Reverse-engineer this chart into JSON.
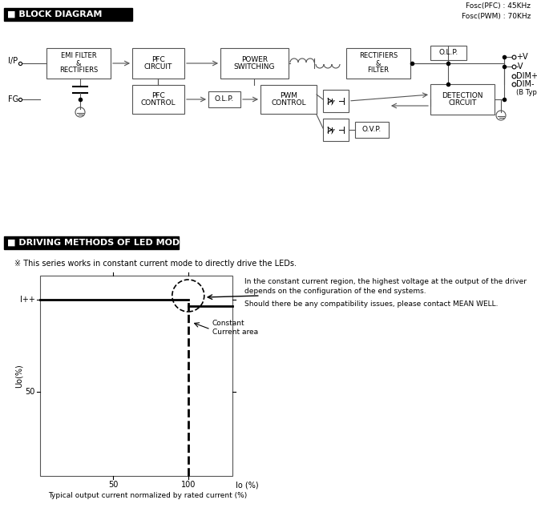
{
  "bg_color": "#ffffff",
  "title1": "■ BLOCK DIAGRAM",
  "fosc_text": "Fosc(PFC) : 45KHz\nFosc(PWM) : 70KHz",
  "title2": "■ DRIVING METHODS OF LED MODULE",
  "subtitle2": "※ This series works in constant current mode to directly drive the LEDs.",
  "graph_note1": "In the constant current region, the highest voltage at the output of the driver",
  "graph_note2": "depends on the configuration of the end systems.",
  "graph_note3": "Should there be any compatibility issues, please contact MEAN WELL.",
  "graph_xlabel": "Io (%)",
  "graph_ylabel": "Uo(%)",
  "graph_caption": "Typical output current normalized by rated current (%)",
  "const_label": "Constant\nCurrent area",
  "ytick_label": "I++",
  "ip_label": "I/P",
  "fg_label": "FG",
  "emi_lines": [
    "EMI FILTER",
    "&",
    "RECTIFIERS"
  ],
  "pfc_circ_lines": [
    "PFC",
    "CIRCUIT"
  ],
  "ps_lines": [
    "POWER",
    "SWITCHING"
  ],
  "rect_lines": [
    "RECTIFIERS",
    "&",
    "FILTER"
  ],
  "olp_top_lines": [
    "O.L.P."
  ],
  "det_lines": [
    "DETECTION",
    "CIRCUIT"
  ],
  "pfc_ctrl_lines": [
    "PFC",
    "CONTROL"
  ],
  "olp2_lines": [
    "O.L.P."
  ],
  "pwm_lines": [
    "PWM",
    "CONTROL"
  ],
  "ovp_lines": [
    "O.V.P."
  ],
  "pv": "+V",
  "mv": "-V",
  "dimp": "DIM+",
  "dimm": "DIM-",
  "btype": "(B Type)"
}
